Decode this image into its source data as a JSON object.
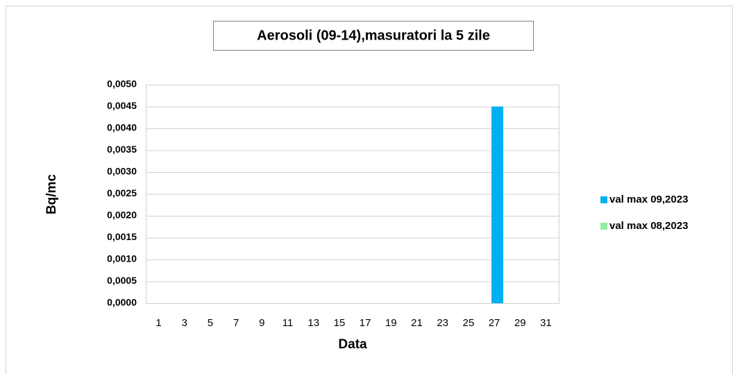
{
  "chart_data": {
    "type": "bar",
    "title": "Aerosoli (09-14),masuratori la 5 zile",
    "x_label": "Data",
    "y_label": "Bq/mc",
    "categories": [
      "1",
      "3",
      "5",
      "7",
      "9",
      "11",
      "13",
      "15",
      "17",
      "19",
      "21",
      "23",
      "25",
      "27",
      "29",
      "31"
    ],
    "series": [
      {
        "name": "val max 09,2023",
        "color": "#00b0f0",
        "values": [
          0,
          0,
          0,
          0,
          0,
          0,
          0,
          0,
          0,
          0,
          0,
          0,
          0,
          0.0045,
          0,
          0
        ]
      },
      {
        "name": "val max 08,2023",
        "color": "#92f0a0",
        "values": [
          0,
          0,
          0,
          0,
          0,
          0,
          0,
          0,
          0,
          0,
          0,
          0,
          0,
          0,
          0,
          0
        ]
      }
    ],
    "ylim": [
      0,
      0.005
    ],
    "yticks": [
      {
        "value": 0,
        "label": "0,0000"
      },
      {
        "value": 0.0005,
        "label": "0,0005"
      },
      {
        "value": 0.001,
        "label": "0,0010"
      },
      {
        "value": 0.0015,
        "label": "0,0015"
      },
      {
        "value": 0.002,
        "label": "0,0020"
      },
      {
        "value": 0.0025,
        "label": "0,0025"
      },
      {
        "value": 0.003,
        "label": "0,0030"
      },
      {
        "value": 0.0035,
        "label": "0,0035"
      },
      {
        "value": 0.004,
        "label": "0,0040"
      },
      {
        "value": 0.0045,
        "label": "0,0045"
      },
      {
        "value": 0.005,
        "label": "0,0050"
      }
    ],
    "grid": true,
    "legend": "right"
  }
}
